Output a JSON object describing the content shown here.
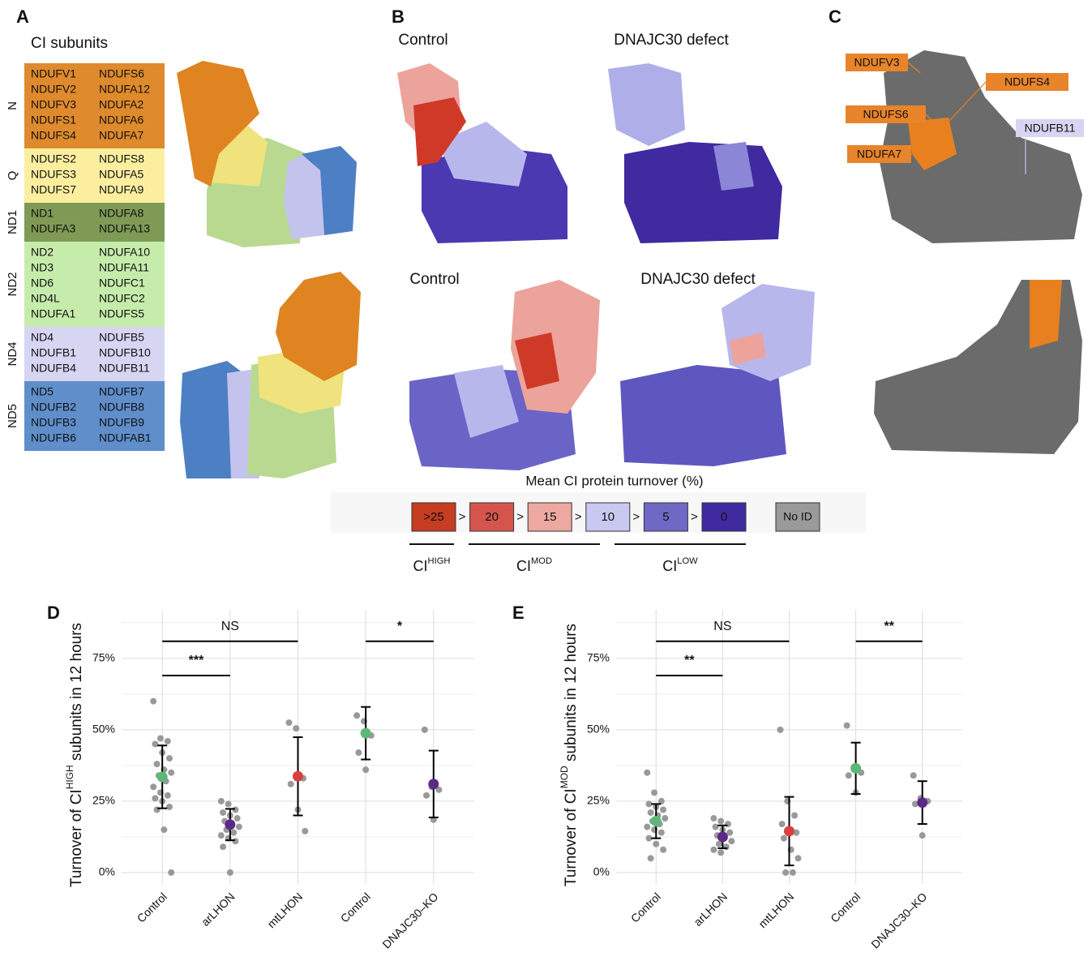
{
  "panel_labels": [
    "A",
    "B",
    "C",
    "D",
    "E"
  ],
  "panel_a": {
    "title": "CI subunits",
    "groups": [
      {
        "name": "N",
        "color": "#df8a2c",
        "left": [
          "NDUFV1",
          "NDUFV2",
          "NDUFV3",
          "NDUFS1",
          "NDUFS4"
        ],
        "right": [
          "NDUFS6",
          "NDUFA12",
          "NDUFA2",
          "NDUFA6",
          "NDUFA7"
        ]
      },
      {
        "name": "Q",
        "color": "#fbef9f",
        "left": [
          "NDUFS2",
          "NDUFS3",
          "NDUFS7"
        ],
        "right": [
          "NDUFS8",
          "NDUFA5",
          "NDUFA9"
        ]
      },
      {
        "name": "ND1",
        "color": "#7f9a55",
        "left": [
          "ND1",
          "NDUFA3"
        ],
        "right": [
          "NDUFA8",
          "NDUFA13"
        ]
      },
      {
        "name": "ND2",
        "color": "#c6ecab",
        "left": [
          "ND2",
          "ND3",
          "ND6",
          "ND4L",
          "NDUFA1"
        ],
        "right": [
          "NDUFA10",
          "NDUFA11",
          "NDUFC1",
          "NDUFC2",
          "NDUFS5"
        ]
      },
      {
        "name": "ND4",
        "color": "#d6d5f2",
        "left": [
          "ND4",
          "NDUFB1",
          "NDUFB4"
        ],
        "right": [
          "NDUFB5",
          "NDUFB10",
          "NDUFB11"
        ]
      },
      {
        "name": "ND5",
        "color": "#5f8ecb",
        "left": [
          "ND5",
          "NDUFB2",
          "NDUFB3",
          "NDUFB6"
        ],
        "right": [
          "NDUFB7",
          "NDUFB8",
          "NDUFB9",
          "NDUFAB1"
        ]
      }
    ]
  },
  "panel_b": {
    "labels": [
      "Control",
      "DNAJC30 defect",
      "Control",
      "DNAJC30 defect"
    ]
  },
  "panel_c": {
    "labels": [
      {
        "text": "NDUFV3",
        "color": "#e8842a"
      },
      {
        "text": "NDUFS4",
        "color": "#e8842a"
      },
      {
        "text": "NDUFS6",
        "color": "#e8842a"
      },
      {
        "text": "NDUFA7",
        "color": "#e8842a"
      },
      {
        "text": "NDUFB11",
        "color": "#d6d5f2"
      }
    ]
  },
  "legend": {
    "title": "Mean CI protein turnover (%)",
    "separator": ">",
    "bins": [
      {
        "label": ">25",
        "color": "#c73d22"
      },
      {
        "label": "20",
        "color": "#d5554d"
      },
      {
        "label": "15",
        "color": "#eea8a2"
      },
      {
        "label": "10",
        "color": "#c9c8f0"
      },
      {
        "label": "5",
        "color": "#6f68c4"
      },
      {
        "label": "0",
        "color": "#3f2a9f"
      }
    ],
    "no_id": {
      "label": "No ID",
      "color": "#9a9a9a"
    },
    "classes": [
      {
        "text": "CI",
        "sup": "HIGH"
      },
      {
        "text": "CI",
        "sup": "MOD"
      },
      {
        "text": "CI",
        "sup": "LOW"
      }
    ]
  },
  "chart_data": [
    {
      "type": "dot",
      "categories": [
        "Control",
        "arLHON",
        "mtLHON",
        "Control",
        "DNAJC30–KO"
      ],
      "points": [
        [
          60,
          47,
          46,
          45,
          42,
          40,
          38,
          36,
          35,
          34,
          32,
          30,
          28,
          27,
          26,
          25,
          23,
          22,
          15,
          0
        ],
        [
          25,
          24,
          22,
          21,
          20,
          19,
          18,
          17,
          16,
          15,
          14,
          13,
          12,
          11,
          9,
          0
        ],
        [
          52.5,
          50.5,
          33,
          31,
          22,
          14.5
        ],
        [
          55,
          53,
          48,
          42,
          36
        ],
        [
          50,
          30,
          29,
          27,
          18.5
        ]
      ],
      "means": [
        33.5,
        16.8,
        33.7,
        48.8,
        31
      ],
      "errors": [
        11,
        5.5,
        13.7,
        9.2,
        11.7
      ],
      "mean_colors": [
        "#5cb87a",
        "#5b2a86",
        "#d94040",
        "#5cb87a",
        "#5b2a86"
      ],
      "point_color": "#999999",
      "ylim": [
        -4,
        92
      ],
      "yticks": [
        {
          "value": 0,
          "label": "0%"
        },
        {
          "value": 25,
          "label": "25%"
        },
        {
          "value": 50,
          "label": "50%"
        },
        {
          "value": 75,
          "label": "75%"
        }
      ],
      "minor_yticks": [
        12.5,
        37.5,
        62.5,
        87.5
      ],
      "grid": true,
      "y_label": {
        "text": "Turnover of CI",
        "sup": "HIGH",
        "suffix": " subunits in 12 hours"
      },
      "brackets": [
        {
          "from": 0,
          "to": 2,
          "y": 81,
          "label": "NS"
        },
        {
          "from": 0,
          "to": 1,
          "y": 69,
          "label": "***"
        },
        {
          "from": 3,
          "to": 4,
          "y": 81,
          "label": "*"
        }
      ]
    },
    {
      "type": "dot",
      "categories": [
        "Control",
        "arLHON",
        "mtLHON",
        "Control",
        "DNAJC30–KO"
      ],
      "points": [
        [
          35,
          28,
          25,
          24,
          23,
          22,
          21,
          20,
          19,
          18,
          17,
          16,
          15,
          14,
          12,
          10,
          8,
          5
        ],
        [
          19,
          18,
          17,
          16,
          15,
          14,
          13,
          12,
          11,
          10,
          9,
          8,
          7
        ],
        [
          50,
          25,
          20,
          17,
          15,
          14,
          12,
          8,
          5,
          0,
          0
        ],
        [
          51.5,
          37,
          35,
          34,
          28
        ],
        [
          34,
          26,
          25,
          24,
          13
        ]
      ],
      "means": [
        18,
        12.5,
        14.5,
        36.5,
        24.5
      ],
      "errors": [
        6,
        4,
        12,
        9,
        7.5
      ],
      "mean_colors": [
        "#5cb87a",
        "#5b2a86",
        "#d94040",
        "#5cb87a",
        "#5b2a86"
      ],
      "point_color": "#999999",
      "ylim": [
        -4,
        92
      ],
      "yticks": [
        {
          "value": 0,
          "label": "0%"
        },
        {
          "value": 25,
          "label": "25%"
        },
        {
          "value": 50,
          "label": "50%"
        },
        {
          "value": 75,
          "label": "75%"
        }
      ],
      "minor_yticks": [
        12.5,
        37.5,
        62.5,
        87.5
      ],
      "grid": true,
      "y_label": {
        "text": "Turnover of CI",
        "sup": "MOD",
        "suffix": " subunits in 12 hours"
      },
      "brackets": [
        {
          "from": 0,
          "to": 2,
          "y": 81,
          "label": "NS"
        },
        {
          "from": 0,
          "to": 1,
          "y": 69,
          "label": "**"
        },
        {
          "from": 3,
          "to": 4,
          "y": 81,
          "label": "**"
        }
      ]
    }
  ]
}
